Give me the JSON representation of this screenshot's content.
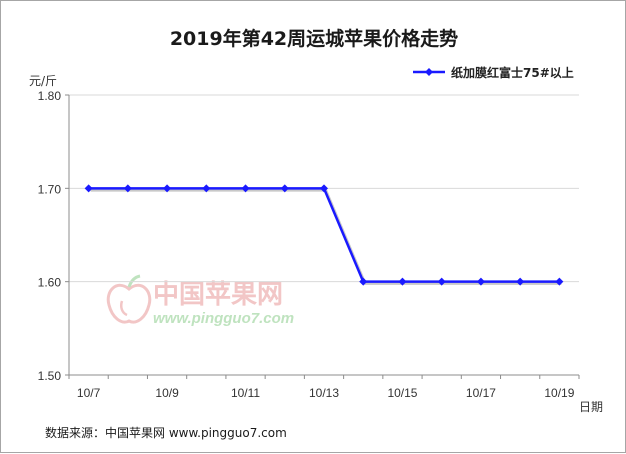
{
  "chart_data": {
    "type": "line",
    "title": "2019年第42周运城苹果价格走势",
    "ylabel": "元/斤",
    "xlabel": "日期",
    "ylim": [
      1.5,
      1.8
    ],
    "yticks": [
      "1.50",
      "1.60",
      "1.70",
      "1.80"
    ],
    "ytick_values": [
      1.5,
      1.6,
      1.7,
      1.8
    ],
    "categories": [
      "10/7",
      "10/8",
      "10/9",
      "10/10",
      "10/11",
      "10/12",
      "10/13",
      "10/14",
      "10/15",
      "10/16",
      "10/17",
      "10/18",
      "10/19"
    ],
    "xtick_labels_shown": [
      "10/7",
      "10/9",
      "10/11",
      "10/13",
      "10/15",
      "10/17",
      "10/19"
    ],
    "series": [
      {
        "name": "纸加膜红富士75#以上",
        "color": "#1a1aff",
        "marker": "diamond",
        "values": [
          1.7,
          1.7,
          1.7,
          1.7,
          1.7,
          1.7,
          1.7,
          1.6,
          1.6,
          1.6,
          1.6,
          1.6,
          1.6
        ]
      }
    ],
    "legend_position": "top-right",
    "grid": "horizontal"
  },
  "source": "数据来源：中国苹果网 www.pingguo7.com",
  "watermark": {
    "name": "中国苹果网",
    "url": "www.pingguo7.com",
    "logo_icon": "apple-logo-icon"
  }
}
